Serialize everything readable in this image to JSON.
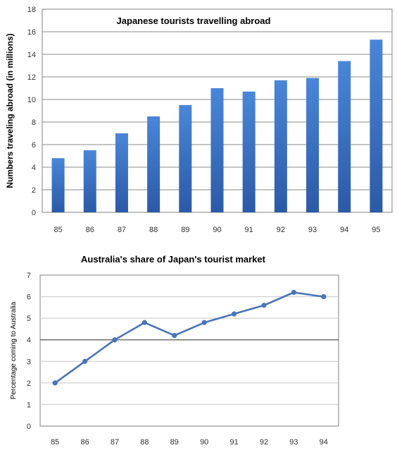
{
  "chart_data": [
    {
      "type": "bar",
      "title": "Japanese tourists travelling abroad",
      "xlabel": "",
      "ylabel": "Numbers traveling abroad (in millions)",
      "ylim": [
        0,
        18
      ],
      "yticks": [
        "0",
        "2",
        "4",
        "6",
        "8",
        "10",
        "12",
        "14",
        "16",
        "18"
      ],
      "categories": [
        "85",
        "86",
        "87",
        "88",
        "89",
        "90",
        "91",
        "92",
        "93",
        "94",
        "95"
      ],
      "values": [
        4.8,
        5.5,
        7.0,
        8.5,
        9.5,
        11.0,
        10.7,
        11.7,
        11.9,
        13.4,
        15.3
      ],
      "grid": "horizontal",
      "bar_color": "#3f73c4"
    },
    {
      "type": "line",
      "title": "Australia's share of Japan's tourist market",
      "xlabel": "",
      "ylabel": "Percentage coming to Australia",
      "ylim": [
        0,
        7
      ],
      "yticks": [
        "0",
        "1",
        "2",
        "3",
        "4",
        "5",
        "6",
        "7"
      ],
      "categories": [
        "85",
        "86",
        "87",
        "88",
        "89",
        "90",
        "91",
        "92",
        "93",
        "94"
      ],
      "values": [
        2.0,
        3.0,
        4.0,
        4.8,
        4.2,
        4.8,
        5.2,
        5.6,
        6.2,
        6.0
      ],
      "grid": "major line at 4",
      "line_color": "#4a74b8"
    }
  ]
}
